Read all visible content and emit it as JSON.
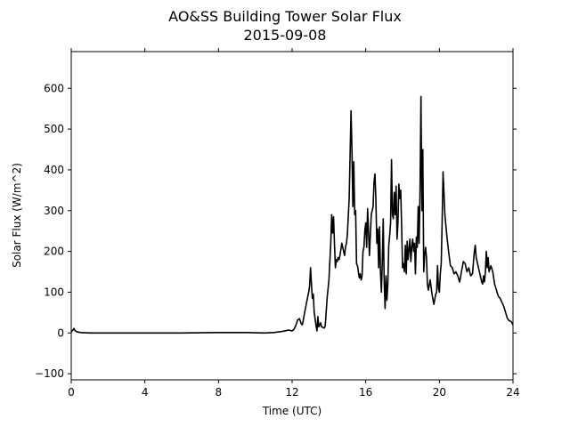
{
  "chart_data": {
    "type": "line",
    "title": "AO&SS Building Tower Solar Flux",
    "subtitle": "2015-09-08",
    "xlabel": "Time (UTC)",
    "ylabel": "Solar Flux (W/m^2)",
    "xlim": [
      0,
      24
    ],
    "ylim": [
      -115,
      690
    ],
    "xticks": [
      0,
      4,
      8,
      12,
      16,
      20,
      24
    ],
    "yticks": [
      -100,
      0,
      100,
      200,
      300,
      400,
      500,
      600
    ],
    "grid": false,
    "line_color": "#000000",
    "series": [
      {
        "x": [
          0.0,
          0.1,
          0.15,
          0.2,
          0.3,
          0.5,
          1.0,
          2.0,
          4.0,
          6.0,
          8.0,
          9.5,
          10.5,
          11.0,
          11.5,
          11.8,
          12.0,
          12.1,
          12.2,
          12.3,
          12.4,
          12.5,
          12.55,
          12.6,
          12.7,
          12.8,
          12.9,
          12.95,
          13.0,
          13.05,
          13.1,
          13.15,
          13.2,
          13.3,
          13.35,
          13.4,
          13.45,
          13.5,
          13.55,
          13.6,
          13.7,
          13.75,
          13.8,
          13.9,
          14.0,
          14.1,
          14.15,
          14.2,
          14.25,
          14.3,
          14.35,
          14.4,
          14.45,
          14.5,
          14.55,
          14.6,
          14.7,
          14.8,
          14.85,
          14.9,
          14.95,
          15.0,
          15.1,
          15.2,
          15.25,
          15.3,
          15.35,
          15.4,
          15.45,
          15.5,
          15.55,
          15.6,
          15.65,
          15.7,
          15.75,
          15.8,
          15.85,
          15.9,
          15.95,
          16.0,
          16.05,
          16.1,
          16.15,
          16.2,
          16.3,
          16.4,
          16.45,
          16.5,
          16.55,
          16.6,
          16.65,
          16.7,
          16.75,
          16.8,
          16.85,
          16.9,
          16.95,
          17.0,
          17.05,
          17.1,
          17.15,
          17.2,
          17.25,
          17.3,
          17.35,
          17.4,
          17.45,
          17.5,
          17.55,
          17.6,
          17.65,
          17.7,
          17.75,
          17.8,
          17.85,
          17.9,
          17.95,
          18.0,
          18.05,
          18.1,
          18.15,
          18.2,
          18.25,
          18.3,
          18.35,
          18.4,
          18.45,
          18.5,
          18.55,
          18.6,
          18.65,
          18.7,
          18.75,
          18.8,
          18.85,
          18.9,
          18.95,
          19.0,
          19.05,
          19.1,
          19.15,
          19.2,
          19.25,
          19.3,
          19.35,
          19.4,
          19.5,
          19.6,
          19.7,
          19.8,
          19.85,
          19.9,
          19.95,
          20.0,
          20.05,
          20.1,
          20.15,
          20.2,
          20.3,
          20.4,
          20.5,
          20.6,
          20.7,
          20.8,
          20.9,
          21.0,
          21.1,
          21.2,
          21.3,
          21.4,
          21.5,
          21.6,
          21.7,
          21.8,
          21.9,
          21.95,
          22.0,
          22.05,
          22.1,
          22.2,
          22.3,
          22.35,
          22.4,
          22.45,
          22.5,
          22.55,
          22.6,
          22.65,
          22.7,
          22.8,
          22.9,
          23.0,
          23.1,
          23.2,
          23.3,
          23.4,
          23.5,
          23.6,
          23.7,
          23.8,
          23.9,
          24.0
        ],
        "y": [
          2,
          8,
          11,
          6,
          3,
          1,
          0,
          0,
          0,
          0,
          1,
          1,
          0,
          1,
          4,
          7,
          5,
          9,
          18,
          32,
          35,
          22,
          20,
          30,
          55,
          78,
          100,
          115,
          160,
          120,
          85,
          95,
          50,
          18,
          5,
          40,
          15,
          20,
          25,
          15,
          13,
          12,
          18,
          85,
          130,
          220,
          290,
          245,
          285,
          220,
          160,
          180,
          175,
          185,
          180,
          190,
          220,
          200,
          190,
          210,
          220,
          240,
          330,
          545,
          450,
          310,
          420,
          290,
          300,
          170,
          165,
          150,
          135,
          145,
          130,
          140,
          200,
          210,
          250,
          270,
          210,
          305,
          250,
          190,
          290,
          310,
          370,
          390,
          330,
          220,
          255,
          160,
          260,
          150,
          100,
          175,
          280,
          130,
          60,
          140,
          80,
          120,
          215,
          240,
          270,
          425,
          290,
          280,
          345,
          290,
          360,
          230,
          270,
          365,
          330,
          350,
          260,
          160,
          170,
          150,
          215,
          145,
          225,
          180,
          205,
          230,
          175,
          210,
          230,
          200,
          220,
          145,
          235,
          210,
          310,
          220,
          350,
          580,
          300,
          450,
          150,
          190,
          210,
          185,
          120,
          105,
          130,
          95,
          70,
          95,
          100,
          165,
          110,
          100,
          145,
          170,
          270,
          395,
          290,
          240,
          200,
          165,
          160,
          145,
          150,
          140,
          125,
          150,
          175,
          170,
          150,
          160,
          140,
          145,
          200,
          215,
          185,
          175,
          165,
          145,
          125,
          120,
          140,
          125,
          150,
          200,
          160,
          185,
          150,
          165,
          150,
          120,
          105,
          90,
          85,
          75,
          65,
          50,
          35,
          30,
          28,
          20
        ]
      }
    ]
  }
}
